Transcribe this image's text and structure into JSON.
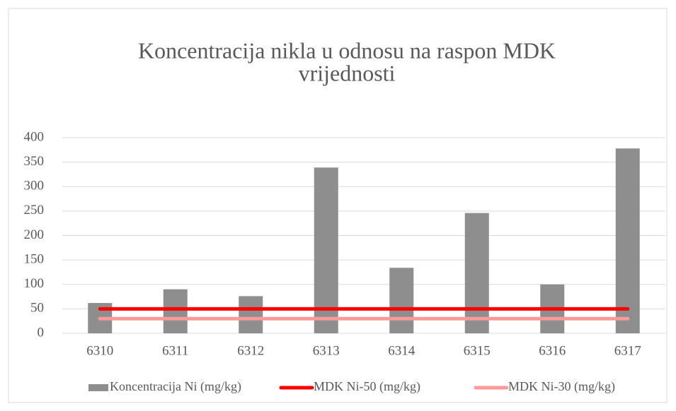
{
  "chart_data": {
    "type": "bar",
    "title": [
      "Koncentracija nikla u odnosu na raspon MDK",
      "vrijednosti"
    ],
    "categories": [
      "6310",
      "6311",
      "6312",
      "6313",
      "6314",
      "6315",
      "6316",
      "6317"
    ],
    "series": [
      {
        "name": "Koncentracija Ni (mg/kg)",
        "type": "bar",
        "color": "#8e8e8e",
        "values": [
          62,
          90,
          76,
          339,
          134,
          246,
          100,
          378
        ]
      },
      {
        "name": "MDK Ni-50 (mg/kg)",
        "type": "line",
        "color": "#ff0000",
        "values": [
          50,
          50,
          50,
          50,
          50,
          50,
          50,
          50
        ]
      },
      {
        "name": "MDK Ni-30 (mg/kg)",
        "type": "line",
        "color": "#ff9999",
        "values": [
          30,
          30,
          30,
          30,
          30,
          30,
          30,
          30
        ]
      }
    ],
    "ylim": [
      0,
      400
    ],
    "yticks": [
      0,
      50,
      100,
      150,
      200,
      250,
      300,
      350,
      400
    ],
    "grid": true,
    "legend": "bottom"
  }
}
